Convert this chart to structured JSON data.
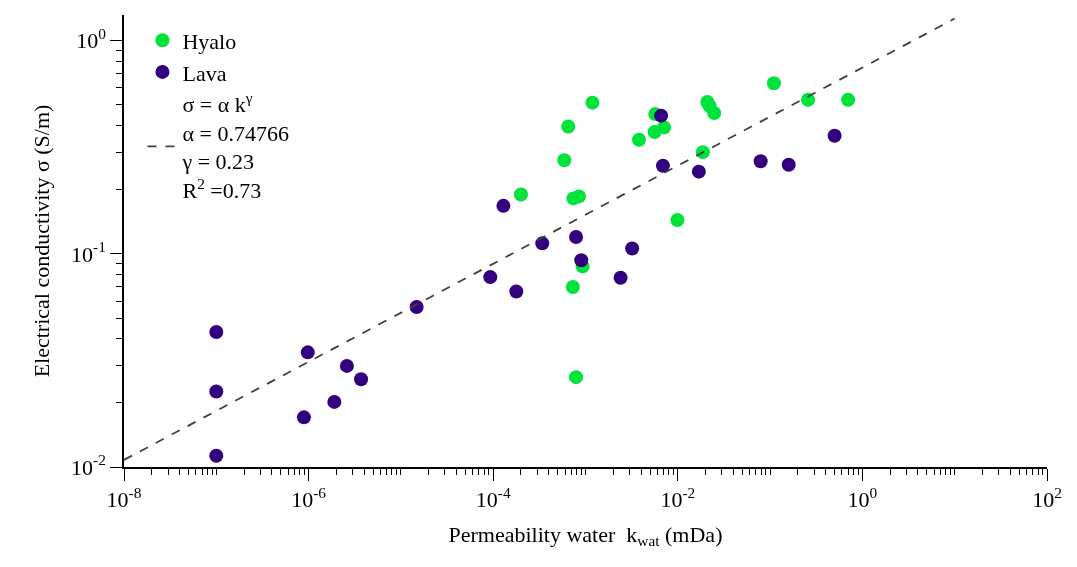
{
  "chart_data": {
    "type": "scatter",
    "xlabel": "Permeability water  k$_{wat}$ (mDa)",
    "ylabel": "Electrical conductivity σ (S/m)",
    "log": "xy",
    "legend": "top left",
    "marker": "circle",
    "xlim": [
      1e-08,
      100
    ],
    "ylim": [
      0.01,
      1.32
    ],
    "xticks": [
      {
        "value": 1e-08,
        "label": "10$^{-8}$"
      },
      {
        "value": 1e-06,
        "label": "10$^{-6}$"
      },
      {
        "value": 0.0001,
        "label": "10$^{-4}$"
      },
      {
        "value": 0.01,
        "label": "10$^{-2}$"
      },
      {
        "value": 1,
        "label": "10$^{0}$"
      },
      {
        "value": 100,
        "label": "10$^{2}$"
      }
    ],
    "yticks": [
      {
        "value": 0.01,
        "label": "10$^{-2}$"
      },
      {
        "value": 0.1,
        "label": "10$^{-1}$"
      },
      {
        "value": 1,
        "label": "10$^{0}$"
      }
    ],
    "series": [
      {
        "name": "Hyalo",
        "color": "#00e33a",
        "x": [
          0.0002,
          0.00059,
          0.00065,
          0.00119,
          0.00074,
          0.00085,
          0.00073,
          0.00093,
          0.00079,
          0.0038,
          0.0056,
          0.0071,
          0.0057,
          0.0099,
          0.0187,
          0.0209,
          0.0221,
          0.0248,
          0.11,
          0.258,
          0.7
        ],
        "values": [
          0.19,
          0.275,
          0.396,
          0.512,
          0.182,
          0.186,
          0.0699,
          0.0873,
          0.0264,
          0.343,
          0.373,
          0.392,
          0.453,
          0.144,
          0.3,
          0.516,
          0.494,
          0.458,
          0.631,
          0.528,
          0.528
        ]
      },
      {
        "name": "Lava",
        "color": "#330080",
        "x": [
          1e-07,
          1e-07,
          1e-07,
          9.8e-07,
          8.9e-07,
          1.9e-06,
          2.6e-06,
          3.7e-06,
          1.48e-05,
          9.3e-05,
          0.000129,
          0.00034,
          0.000178,
          0.00079,
          0.0009,
          0.0032,
          0.0024,
          0.0066,
          0.0069,
          0.0169,
          0.079,
          0.159,
          0.5
        ],
        "values": [
          0.043,
          0.0226,
          0.0113,
          0.0345,
          0.0171,
          0.0202,
          0.0298,
          0.0258,
          0.0563,
          0.0778,
          0.168,
          0.112,
          0.0666,
          0.12,
          0.0933,
          0.106,
          0.0772,
          0.445,
          0.259,
          0.243,
          0.272,
          0.262,
          0.358
        ]
      },
      {
        "name": "σ = α k$^{γ}$\nα = 0.74766\nγ = 0.23\nR$^{2}$ =0.73",
        "type": "line",
        "line_style": "dashed",
        "marker": "none",
        "color": "#404040",
        "x": [
          1e-08,
          10
        ],
        "values": [
          0.0108,
          1.27
        ]
      }
    ]
  }
}
